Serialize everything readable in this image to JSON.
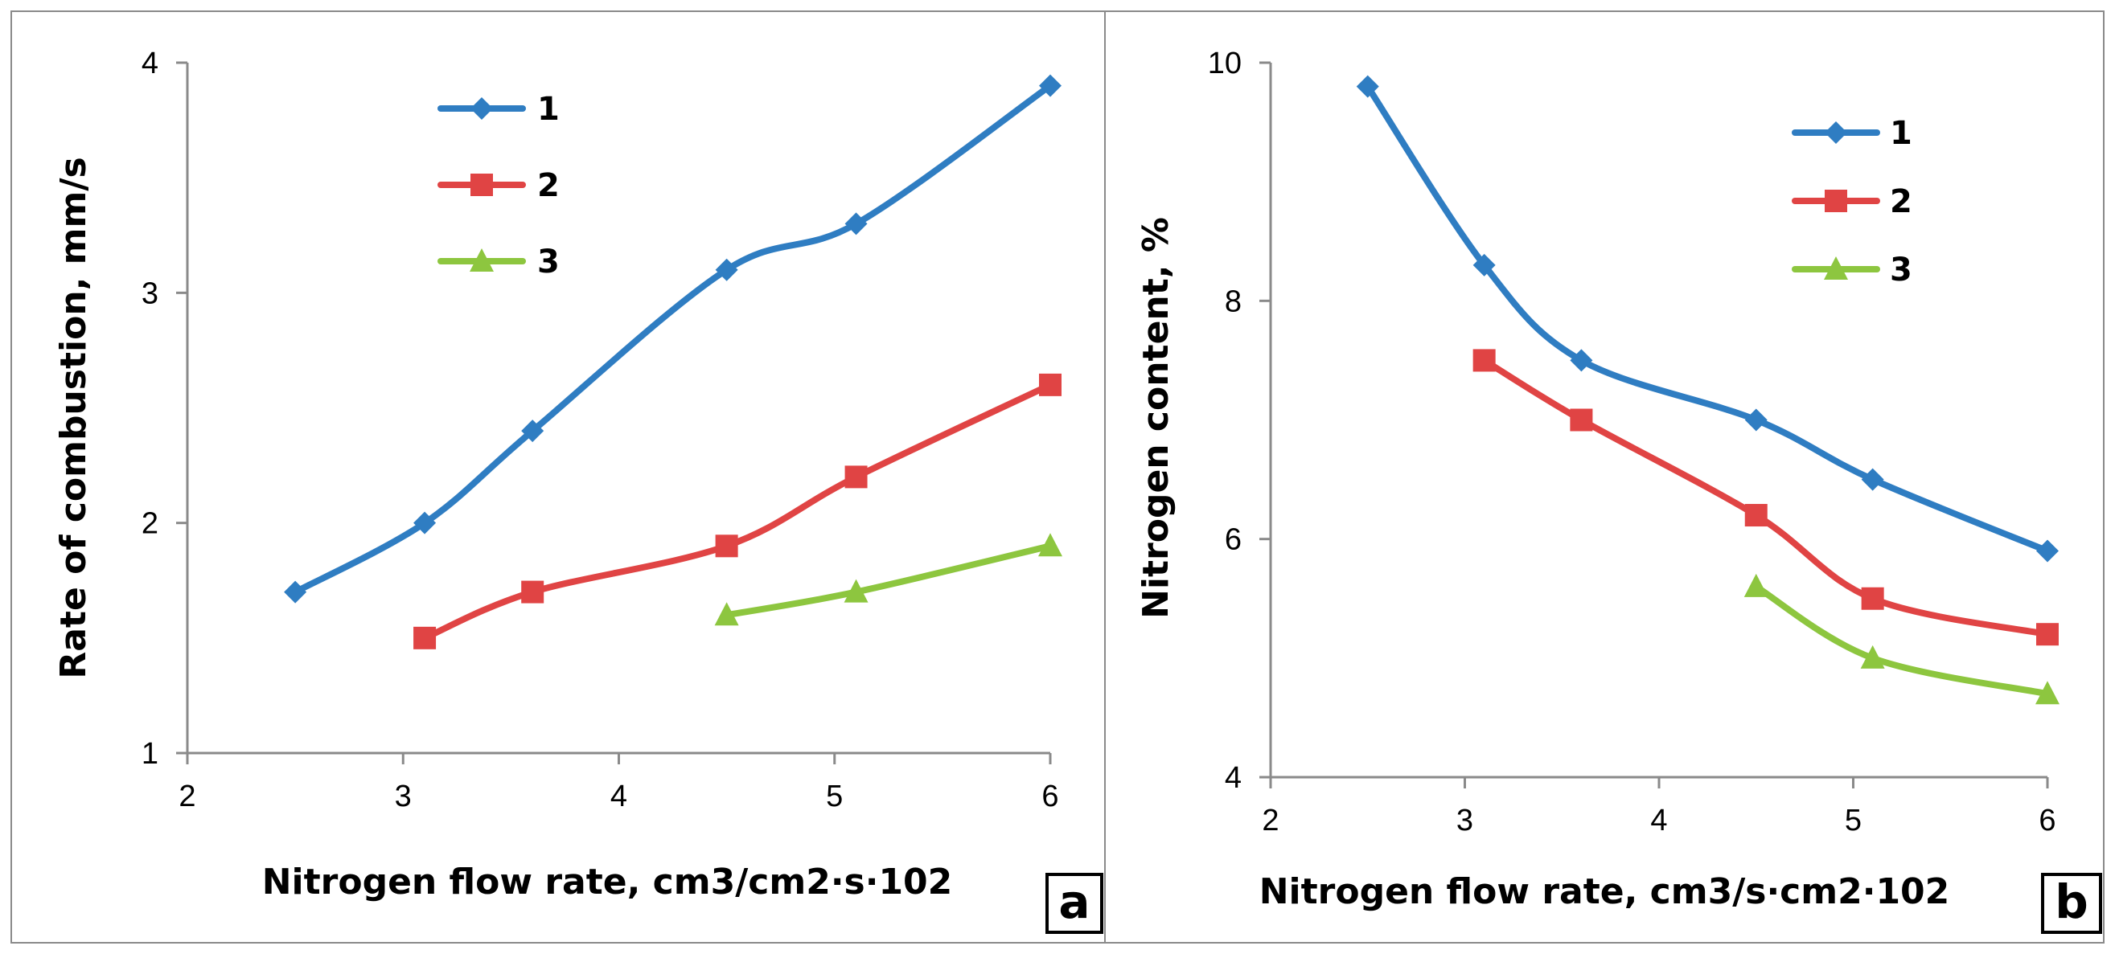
{
  "chart_data": [
    {
      "type": "line",
      "panel_label": "a",
      "xlabel": "Nitrogen flow rate, cm3/cm2·s·102",
      "ylabel": "Rate of combustion, mm/s",
      "xlim": [
        2,
        6
      ],
      "ylim": [
        1,
        4
      ],
      "xticks": [
        "2",
        "3",
        "4",
        "5",
        "6"
      ],
      "yticks": [
        "1",
        "2",
        "3",
        "4"
      ],
      "grid": false,
      "legend_position": "top-center",
      "series": [
        {
          "name": "1",
          "color": "#2f7dc2",
          "marker": "diamond",
          "x": [
            2.5,
            3.1,
            3.6,
            4.5,
            5.1,
            6.0
          ],
          "y": [
            1.7,
            2.0,
            2.4,
            3.1,
            3.3,
            3.9
          ]
        },
        {
          "name": "2",
          "color": "#e04444",
          "marker": "square",
          "x": [
            3.1,
            3.6,
            4.5,
            5.1,
            6.0
          ],
          "y": [
            1.5,
            1.7,
            1.9,
            2.2,
            2.6
          ]
        },
        {
          "name": "3",
          "color": "#8dc63f",
          "marker": "triangle",
          "x": [
            4.5,
            5.1,
            6.0
          ],
          "y": [
            1.6,
            1.7,
            1.9
          ]
        }
      ]
    },
    {
      "type": "line",
      "panel_label": "b",
      "xlabel": "Nitrogen flow rate, cm3/s·cm2·102",
      "ylabel": "Nitrogen content, %",
      "xlim": [
        2,
        6
      ],
      "ylim": [
        4,
        10
      ],
      "xticks": [
        "2",
        "3",
        "4",
        "5",
        "6"
      ],
      "yticks": [
        "4",
        "6",
        "8",
        "10"
      ],
      "grid": false,
      "legend_position": "top-right",
      "series": [
        {
          "name": "1",
          "color": "#2f7dc2",
          "marker": "diamond",
          "x": [
            2.5,
            3.1,
            3.6,
            4.5,
            5.1,
            6.0
          ],
          "y": [
            9.8,
            8.3,
            7.5,
            7.0,
            6.5,
            5.9
          ]
        },
        {
          "name": "2",
          "color": "#e04444",
          "marker": "square",
          "x": [
            3.1,
            3.6,
            4.5,
            5.1,
            6.0
          ],
          "y": [
            7.5,
            7.0,
            6.2,
            5.5,
            5.2
          ]
        },
        {
          "name": "3",
          "color": "#8dc63f",
          "marker": "triangle",
          "x": [
            4.5,
            5.1,
            6.0
          ],
          "y": [
            5.6,
            5.0,
            4.7
          ]
        }
      ]
    }
  ]
}
